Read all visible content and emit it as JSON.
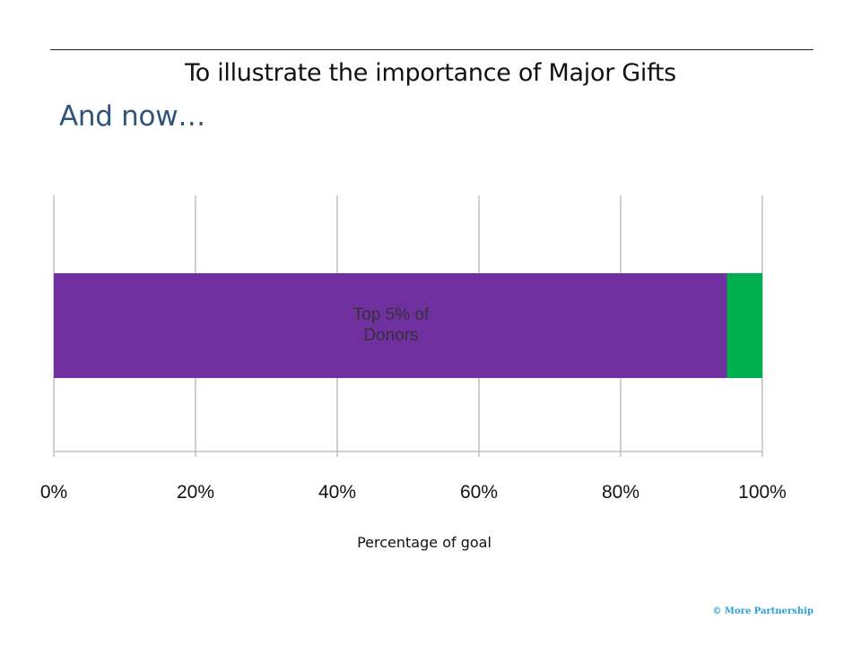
{
  "slide": {
    "title": "To illustrate the importance of Major Gifts",
    "subtitle": "And now…",
    "copyright": "© More Partnership"
  },
  "chart_data": {
    "type": "bar",
    "orientation": "horizontal",
    "stacked": true,
    "xlabel": "Percentage of goal",
    "xlim": [
      0,
      100
    ],
    "x_ticks": [
      "0%",
      "20%",
      "40%",
      "60%",
      "80%",
      "100%"
    ],
    "grid": true,
    "series": [
      {
        "name": "",
        "label": "Top 5% of Donors",
        "value": 95,
        "color": "#7030a0"
      },
      {
        "name": "",
        "label": "",
        "value": 5,
        "color": "#00b050"
      }
    ]
  }
}
